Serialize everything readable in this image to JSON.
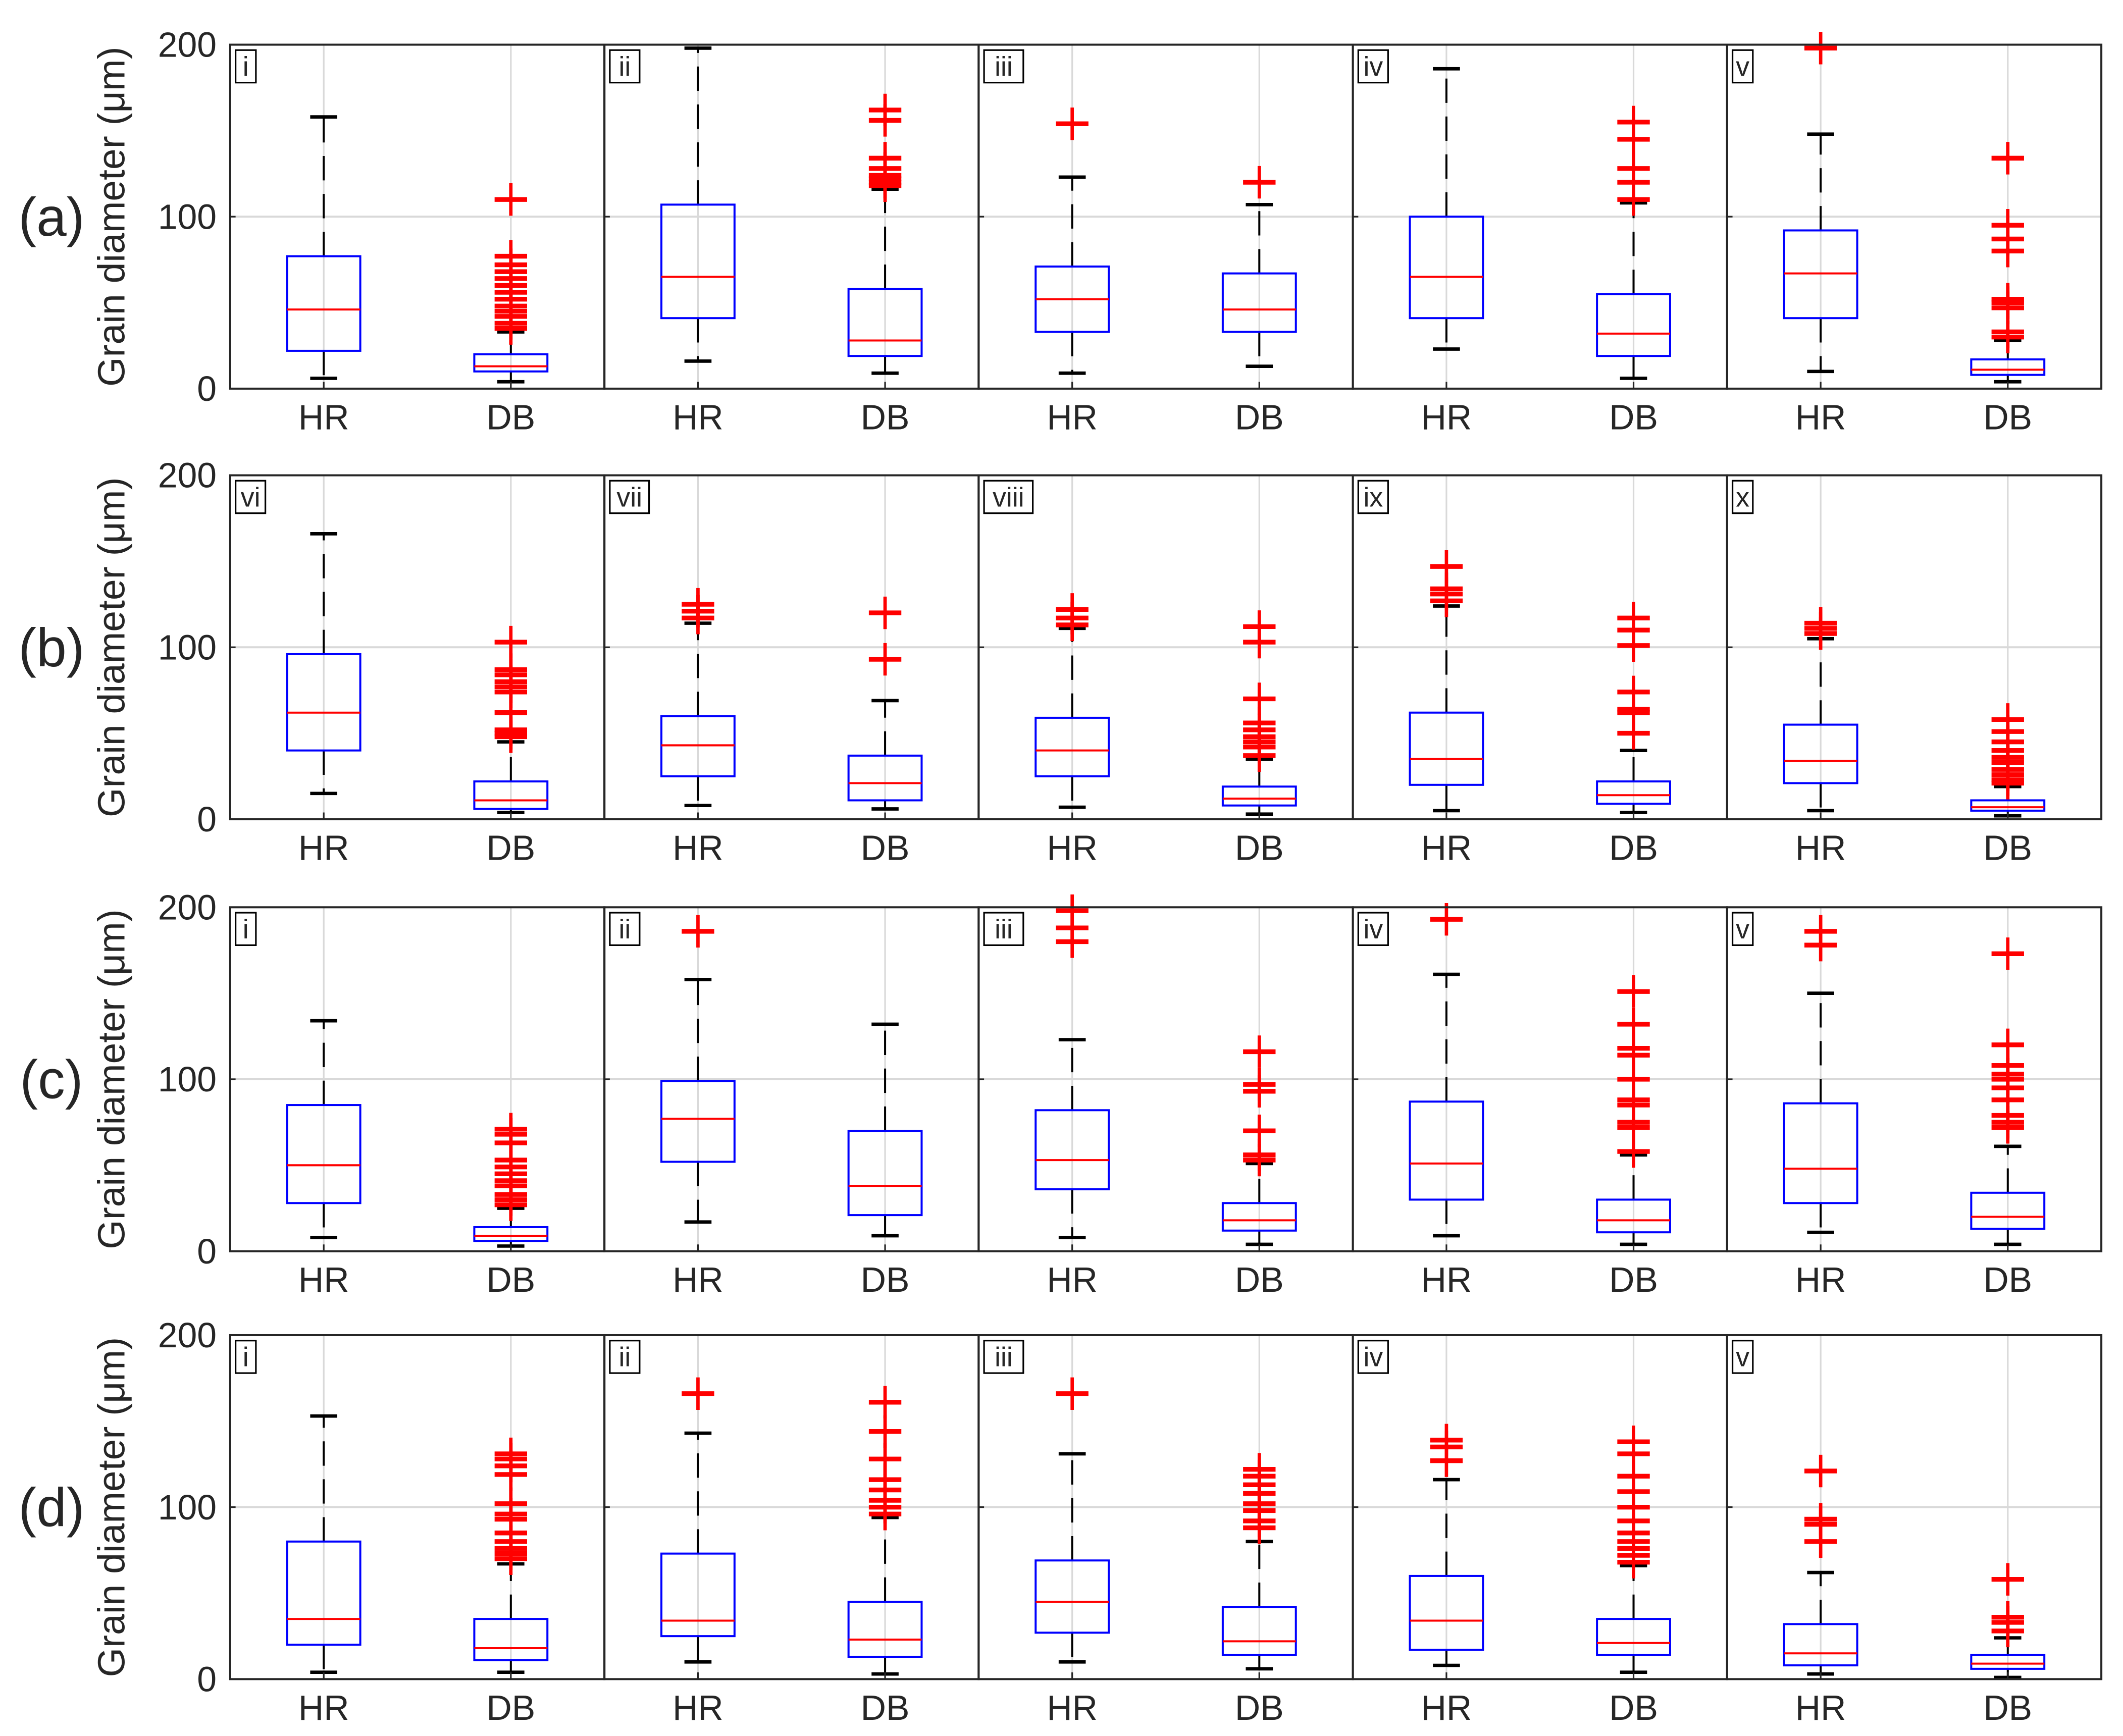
{
  "chart_data": {
    "type": "box",
    "ylabel": "Grain diameter (μm)",
    "ylim": [
      0,
      200
    ],
    "yticks": [
      0,
      100,
      200
    ],
    "grid": true,
    "categories": [
      "HR",
      "DB"
    ],
    "colors": {
      "box": "#0000ff",
      "median": "#ff0000",
      "whisker": "#000000",
      "outlier": "#ff0000",
      "grid": "#d9d9d9",
      "axis": "#262626"
    },
    "rows": [
      {
        "label": "(a)",
        "panels": [
          {
            "tag": "i",
            "HR": {
              "low": 6,
              "q1": 22,
              "median": 46,
              "q3": 77,
              "high": 158,
              "outliers": []
            },
            "DB": {
              "low": 4,
              "q1": 10,
              "median": 13,
              "q3": 20,
              "high": 33,
              "outliers": [
                35,
                38,
                42,
                45,
                48,
                52,
                56,
                60,
                64,
                68,
                72,
                77,
                110
              ]
            }
          },
          {
            "tag": "ii",
            "HR": {
              "low": 16,
              "q1": 41,
              "median": 65,
              "q3": 107,
              "high": 198,
              "outliers": []
            },
            "DB": {
              "low": 9,
              "q1": 19,
              "median": 28,
              "q3": 58,
              "high": 116,
              "outliers": [
                118,
                120,
                122,
                124,
                128,
                134,
                156,
                162
              ]
            },
            "note": ""
          },
          {
            "tag": "iii",
            "HR": {
              "low": 9,
              "q1": 33,
              "median": 52,
              "q3": 71,
              "high": 123,
              "outliers": [
                154
              ]
            },
            "DB": {
              "low": 13,
              "q1": 33,
              "median": 46,
              "q3": 67,
              "high": 107,
              "outliers": [
                120
              ]
            }
          },
          {
            "tag": "iv",
            "HR": {
              "low": 23,
              "q1": 41,
              "median": 65,
              "q3": 100,
              "high": 186,
              "outliers": []
            },
            "DB": {
              "low": 6,
              "q1": 19,
              "median": 32,
              "q3": 55,
              "high": 108,
              "outliers": [
                110,
                120,
                128,
                145,
                155
              ]
            }
          },
          {
            "tag": "v",
            "HR": {
              "low": 10,
              "q1": 41,
              "median": 67,
              "q3": 92,
              "high": 148,
              "outliers": [
                198
              ]
            },
            "DB": {
              "low": 4,
              "q1": 8,
              "median": 11,
              "q3": 17,
              "high": 28,
              "outliers": [
                30,
                33,
                47,
                50,
                52,
                80,
                87,
                95,
                134
              ]
            }
          }
        ]
      },
      {
        "label": "(b)",
        "panels": [
          {
            "tag": "vi",
            "HR": {
              "low": 15,
              "q1": 40,
              "median": 62,
              "q3": 96,
              "high": 166,
              "outliers": []
            },
            "DB": {
              "low": 4,
              "q1": 6,
              "median": 11,
              "q3": 22,
              "high": 45,
              "outliers": [
                48,
                50,
                52,
                62,
                74,
                77,
                80,
                84,
                87,
                103
              ]
            }
          },
          {
            "tag": "vii",
            "HR": {
              "low": 8,
              "q1": 25,
              "median": 43,
              "q3": 60,
              "high": 114,
              "outliers": [
                117,
                121,
                125
              ]
            },
            "DB": {
              "low": 6,
              "q1": 11,
              "median": 21,
              "q3": 37,
              "high": 69,
              "outliers": [
                93,
                120
              ]
            }
          },
          {
            "tag": "viii",
            "HR": {
              "low": 7,
              "q1": 25,
              "median": 40,
              "q3": 59,
              "high": 111,
              "outliers": [
                113,
                117,
                122
              ]
            },
            "DB": {
              "low": 3,
              "q1": 8,
              "median": 12,
              "q3": 19,
              "high": 35,
              "outliers": [
                37,
                42,
                45,
                48,
                52,
                56,
                70,
                103,
                112
              ]
            }
          },
          {
            "tag": "ix",
            "HR": {
              "low": 5,
              "q1": 20,
              "median": 35,
              "q3": 62,
              "high": 124,
              "outliers": [
                127,
                131,
                134,
                147
              ]
            },
            "DB": {
              "low": 4,
              "q1": 9,
              "median": 14,
              "q3": 22,
              "high": 40,
              "outliers": [
                50,
                62,
                64,
                74,
                101,
                110,
                117
              ]
            }
          },
          {
            "tag": "x",
            "HR": {
              "low": 5,
              "q1": 21,
              "median": 34,
              "q3": 55,
              "high": 105,
              "outliers": [
                108,
                111,
                114
              ]
            },
            "DB": {
              "low": 2,
              "q1": 5,
              "median": 7,
              "q3": 11,
              "high": 19,
              "outliers": [
                21,
                23,
                26,
                29,
                33,
                36,
                40,
                45,
                51,
                58
              ]
            }
          }
        ]
      },
      {
        "label": "(c)",
        "panels": [
          {
            "tag": "i",
            "HR": {
              "low": 8,
              "q1": 28,
              "median": 50,
              "q3": 85,
              "high": 134,
              "outliers": []
            },
            "DB": {
              "low": 3,
              "q1": 6,
              "median": 9,
              "q3": 14,
              "high": 25,
              "outliers": [
                27,
                30,
                33,
                38,
                41,
                45,
                49,
                53,
                63,
                68,
                71
              ]
            }
          },
          {
            "tag": "ii",
            "HR": {
              "low": 17,
              "q1": 52,
              "median": 77,
              "q3": 99,
              "high": 158,
              "outliers": [
                186
              ]
            },
            "DB": {
              "low": 9,
              "q1": 21,
              "median": 38,
              "q3": 70,
              "high": 132,
              "outliers": []
            }
          },
          {
            "tag": "iii",
            "HR": {
              "low": 8,
              "q1": 36,
              "median": 53,
              "q3": 82,
              "high": 123,
              "outliers": [
                180,
                188,
                198
              ]
            },
            "DB": {
              "low": 4,
              "q1": 12,
              "median": 18,
              "q3": 28,
              "high": 51,
              "outliers": [
                53,
                56,
                70,
                93,
                97,
                116
              ]
            }
          },
          {
            "tag": "iv",
            "HR": {
              "low": 9,
              "q1": 30,
              "median": 51,
              "q3": 87,
              "high": 161,
              "outliers": [
                193
              ]
            },
            "DB": {
              "low": 4,
              "q1": 11,
              "median": 18,
              "q3": 30,
              "high": 56,
              "outliers": [
                58,
                72,
                75,
                85,
                88,
                100,
                114,
                118,
                132,
                151
              ]
            }
          },
          {
            "tag": "v",
            "HR": {
              "low": 11,
              "q1": 28,
              "median": 48,
              "q3": 86,
              "high": 150,
              "outliers": [
                178,
                186
              ]
            },
            "DB": {
              "low": 4,
              "q1": 13,
              "median": 20,
              "q3": 34,
              "high": 61,
              "outliers": [
                72,
                75,
                79,
                88,
                95,
                100,
                103,
                108,
                120,
                173
              ]
            }
          }
        ]
      },
      {
        "label": "(d)",
        "panels": [
          {
            "tag": "i",
            "HR": {
              "low": 4,
              "q1": 20,
              "median": 35,
              "q3": 80,
              "high": 153,
              "outliers": []
            },
            "DB": {
              "low": 4,
              "q1": 11,
              "median": 18,
              "q3": 35,
              "high": 67,
              "outliers": [
                70,
                73,
                76,
                80,
                85,
                93,
                96,
                102,
                119,
                124,
                128,
                131
              ]
            }
          },
          {
            "tag": "ii",
            "HR": {
              "low": 10,
              "q1": 25,
              "median": 34,
              "q3": 73,
              "high": 143,
              "outliers": [
                166
              ]
            },
            "DB": {
              "low": 3,
              "q1": 13,
              "median": 23,
              "q3": 45,
              "high": 94,
              "outliers": [
                96,
                100,
                104,
                110,
                116,
                128,
                144,
                161
              ]
            }
          },
          {
            "tag": "iii",
            "HR": {
              "low": 10,
              "q1": 27,
              "median": 45,
              "q3": 69,
              "high": 131,
              "outliers": [
                166
              ]
            },
            "DB": {
              "low": 6,
              "q1": 14,
              "median": 22,
              "q3": 42,
              "high": 80,
              "outliers": [
                88,
                92,
                98,
                102,
                108,
                113,
                118,
                122
              ]
            }
          },
          {
            "tag": "iv",
            "HR": {
              "low": 8,
              "q1": 17,
              "median": 34,
              "q3": 60,
              "high": 116,
              "outliers": [
                127,
                135,
                139
              ]
            },
            "DB": {
              "low": 4,
              "q1": 14,
              "median": 21,
              "q3": 35,
              "high": 66,
              "outliers": [
                68,
                72,
                76,
                80,
                85,
                92,
                100,
                109,
                118,
                131,
                138
              ]
            }
          },
          {
            "tag": "v",
            "HR": {
              "low": 3,
              "q1": 8,
              "median": 15,
              "q3": 32,
              "high": 62,
              "outliers": [
                80,
                90,
                93,
                121
              ]
            },
            "DB": {
              "low": 1,
              "q1": 6,
              "median": 9,
              "q3": 14,
              "high": 24,
              "outliers": [
                28,
                33,
                36,
                58
              ]
            }
          }
        ]
      }
    ]
  }
}
